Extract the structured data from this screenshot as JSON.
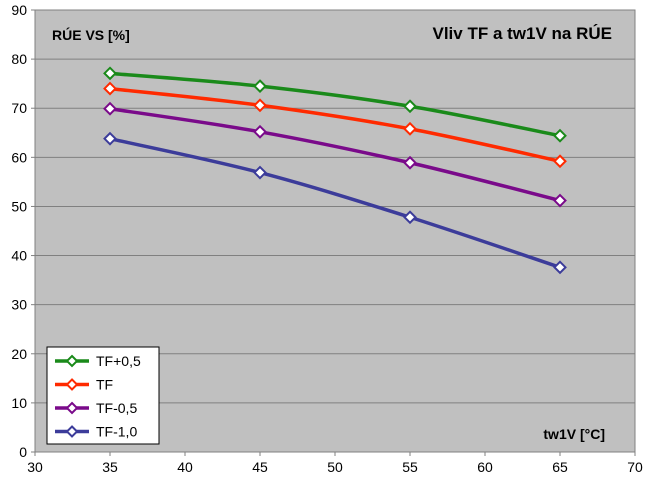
{
  "chart_data": {
    "type": "line",
    "title": "Vliv TF a tw1V na RÚE",
    "xlabel": "tw1V [°C]",
    "ylabel": "RÚE VS [%]",
    "xlim": [
      30,
      70
    ],
    "ylim": [
      0,
      90
    ],
    "xticks": [
      30,
      35,
      40,
      45,
      50,
      55,
      60,
      65,
      70
    ],
    "yticks": [
      0,
      10,
      20,
      30,
      40,
      50,
      60,
      70,
      80,
      90
    ],
    "grid": "horizontal",
    "legend_position": "bottom-left",
    "plot_background": "#c0c0c0",
    "x": [
      35,
      45,
      55,
      65
    ],
    "series": [
      {
        "name": "TF+0,5",
        "color": "#1a8a1a",
        "values": [
          77.1,
          74.5,
          70.4,
          64.4
        ]
      },
      {
        "name": "TF",
        "color": "#ff2a00",
        "values": [
          74.0,
          70.6,
          65.8,
          59.2
        ]
      },
      {
        "name": "TF-0,5",
        "color": "#7a0a8a",
        "values": [
          69.9,
          65.2,
          58.9,
          51.2
        ]
      },
      {
        "name": "TF-1,0",
        "color": "#3c3c9a",
        "values": [
          63.8,
          56.9,
          47.8,
          37.6
        ]
      }
    ]
  }
}
